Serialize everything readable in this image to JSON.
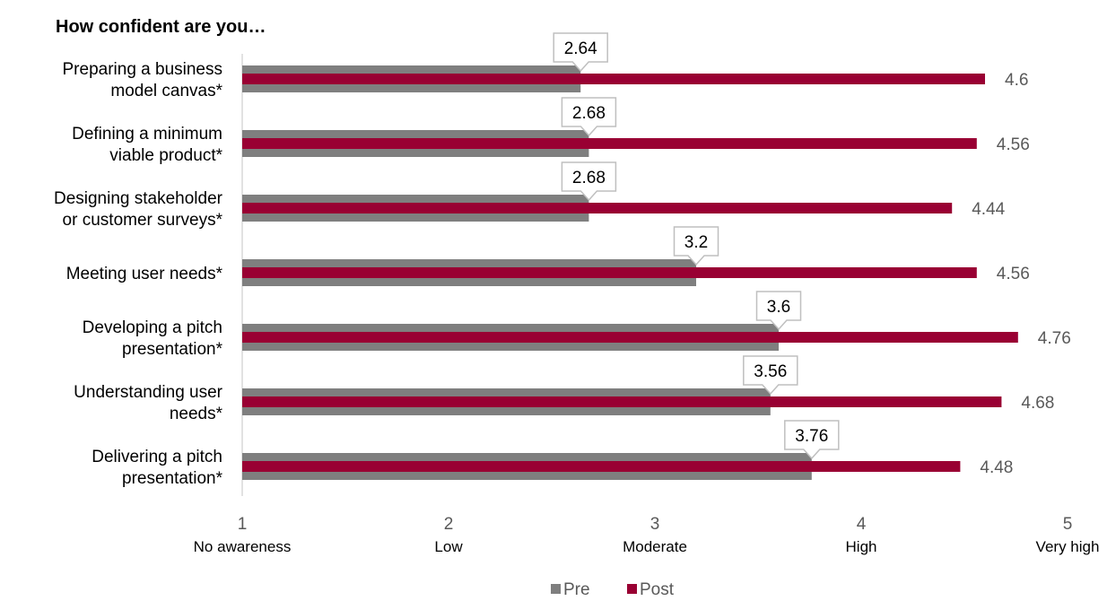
{
  "chart_data": {
    "type": "bar",
    "orientation": "horizontal",
    "title": "How confident are you…",
    "categories": [
      [
        "Preparing a business",
        "model canvas*"
      ],
      [
        "Defining a minimum",
        "viable product*"
      ],
      [
        "Designing stakeholder",
        "or customer surveys*"
      ],
      [
        "Meeting user needs*"
      ],
      [
        "Developing a pitch",
        "presentation*"
      ],
      [
        "Understanding user",
        "needs*"
      ],
      [
        "Delivering a pitch",
        "presentation*"
      ]
    ],
    "series": [
      {
        "name": "Pre",
        "color": "#7f7f7f",
        "values": [
          2.64,
          2.68,
          2.68,
          3.2,
          3.6,
          3.56,
          3.76
        ],
        "labels": [
          "2.64",
          "2.68",
          "2.68",
          "3.2",
          "3.6",
          "3.56",
          "3.76"
        ]
      },
      {
        "name": "Post",
        "color": "#990033",
        "values": [
          4.6,
          4.56,
          4.44,
          4.56,
          4.76,
          4.68,
          4.48
        ],
        "labels": [
          "4.6",
          "4.56",
          "4.44",
          "4.56",
          "4.76",
          "4.68",
          "4.48"
        ]
      }
    ],
    "x_ticks": [
      {
        "value": 1,
        "label": "1",
        "sublabel": "No awareness"
      },
      {
        "value": 2,
        "label": "2",
        "sublabel": "Low"
      },
      {
        "value": 3,
        "label": "3",
        "sublabel": "Moderate"
      },
      {
        "value": 4,
        "label": "4",
        "sublabel": "High"
      },
      {
        "value": 5,
        "label": "5",
        "sublabel": "Very high"
      }
    ],
    "xlim": [
      1,
      5
    ],
    "grid": false,
    "legend_position": "bottom",
    "xlabel": "",
    "ylabel": ""
  }
}
